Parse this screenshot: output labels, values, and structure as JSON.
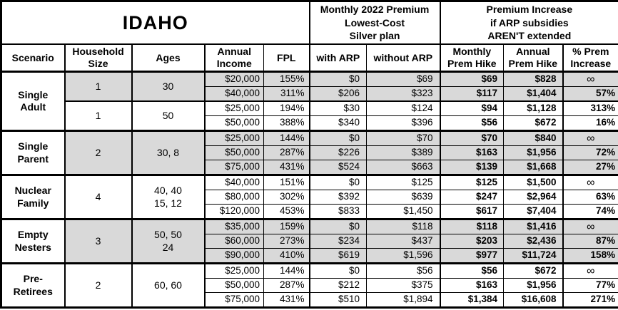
{
  "title": "IDAHO",
  "colors": {
    "shaded": "#d9d9d9",
    "border": "#000000",
    "bg": "#ffffff",
    "text": "#000000"
  },
  "header": {
    "premium": "Monthly 2022 Premium\nLowest-Cost\nSilver plan",
    "increase": "Premium Increase\nif ARP subsidies\nAREN'T extended",
    "columns": [
      "Scenario",
      "Household\nSize",
      "Ages",
      "Annual\nIncome",
      "FPL",
      "with ARP",
      "without ARP",
      "Monthly\nPrem Hike",
      "Annual\nPrem Hike",
      "% Prem\nIncrease"
    ]
  },
  "chart_data": {
    "type": "table",
    "title": "IDAHO",
    "columns": [
      "Scenario",
      "Household Size",
      "Ages",
      "Annual Income",
      "FPL",
      "with ARP",
      "without ARP",
      "Monthly Prem Hike",
      "Annual Prem Hike",
      "% Prem Increase"
    ],
    "groups": [
      {
        "scenario": "Single\nAdult",
        "subgroups": [
          {
            "household_size": "1",
            "ages": "30",
            "shaded": true,
            "rows": [
              {
                "income": "$20,000",
                "fpl": "155%",
                "with_arp": "$0",
                "without_arp": "$69",
                "monthly_hike": "$69",
                "annual_hike": "$828",
                "pct_increase": "∞"
              },
              {
                "income": "$40,000",
                "fpl": "311%",
                "with_arp": "$206",
                "without_arp": "$323",
                "monthly_hike": "$117",
                "annual_hike": "$1,404",
                "pct_increase": "57%"
              }
            ]
          },
          {
            "household_size": "1",
            "ages": "50",
            "shaded": false,
            "rows": [
              {
                "income": "$25,000",
                "fpl": "194%",
                "with_arp": "$30",
                "without_arp": "$124",
                "monthly_hike": "$94",
                "annual_hike": "$1,128",
                "pct_increase": "313%"
              },
              {
                "income": "$50,000",
                "fpl": "388%",
                "with_arp": "$340",
                "without_arp": "$396",
                "monthly_hike": "$56",
                "annual_hike": "$672",
                "pct_increase": "16%"
              }
            ]
          }
        ]
      },
      {
        "scenario": "Single\nParent",
        "subgroups": [
          {
            "household_size": "2",
            "ages": "30, 8",
            "shaded": true,
            "rows": [
              {
                "income": "$25,000",
                "fpl": "144%",
                "with_arp": "$0",
                "without_arp": "$70",
                "monthly_hike": "$70",
                "annual_hike": "$840",
                "pct_increase": "∞"
              },
              {
                "income": "$50,000",
                "fpl": "287%",
                "with_arp": "$226",
                "without_arp": "$389",
                "monthly_hike": "$163",
                "annual_hike": "$1,956",
                "pct_increase": "72%"
              },
              {
                "income": "$75,000",
                "fpl": "431%",
                "with_arp": "$524",
                "without_arp": "$663",
                "monthly_hike": "$139",
                "annual_hike": "$1,668",
                "pct_increase": "27%"
              }
            ]
          }
        ]
      },
      {
        "scenario": "Nuclear\nFamily",
        "subgroups": [
          {
            "household_size": "4",
            "ages": "40, 40\n15, 12",
            "shaded": false,
            "rows": [
              {
                "income": "$40,000",
                "fpl": "151%",
                "with_arp": "$0",
                "without_arp": "$125",
                "monthly_hike": "$125",
                "annual_hike": "$1,500",
                "pct_increase": "∞"
              },
              {
                "income": "$80,000",
                "fpl": "302%",
                "with_arp": "$392",
                "without_arp": "$639",
                "monthly_hike": "$247",
                "annual_hike": "$2,964",
                "pct_increase": "63%"
              },
              {
                "income": "$120,000",
                "fpl": "453%",
                "with_arp": "$833",
                "without_arp": "$1,450",
                "monthly_hike": "$617",
                "annual_hike": "$7,404",
                "pct_increase": "74%"
              }
            ]
          }
        ]
      },
      {
        "scenario": "Empty\nNesters",
        "subgroups": [
          {
            "household_size": "3",
            "ages": "50, 50\n24",
            "shaded": true,
            "rows": [
              {
                "income": "$35,000",
                "fpl": "159%",
                "with_arp": "$0",
                "without_arp": "$118",
                "monthly_hike": "$118",
                "annual_hike": "$1,416",
                "pct_increase": "∞"
              },
              {
                "income": "$60,000",
                "fpl": "273%",
                "with_arp": "$234",
                "without_arp": "$437",
                "monthly_hike": "$203",
                "annual_hike": "$2,436",
                "pct_increase": "87%"
              },
              {
                "income": "$90,000",
                "fpl": "410%",
                "with_arp": "$619",
                "without_arp": "$1,596",
                "monthly_hike": "$977",
                "annual_hike": "$11,724",
                "pct_increase": "158%"
              }
            ]
          }
        ]
      },
      {
        "scenario": "Pre-\nRetirees",
        "subgroups": [
          {
            "household_size": "2",
            "ages": "60, 60",
            "shaded": false,
            "rows": [
              {
                "income": "$25,000",
                "fpl": "144%",
                "with_arp": "$0",
                "without_arp": "$56",
                "monthly_hike": "$56",
                "annual_hike": "$672",
                "pct_increase": "∞"
              },
              {
                "income": "$50,000",
                "fpl": "287%",
                "with_arp": "$212",
                "without_arp": "$375",
                "monthly_hike": "$163",
                "annual_hike": "$1,956",
                "pct_increase": "77%"
              },
              {
                "income": "$75,000",
                "fpl": "431%",
                "with_arp": "$510",
                "without_arp": "$1,894",
                "monthly_hike": "$1,384",
                "annual_hike": "$16,608",
                "pct_increase": "271%"
              }
            ]
          }
        ]
      }
    ]
  }
}
